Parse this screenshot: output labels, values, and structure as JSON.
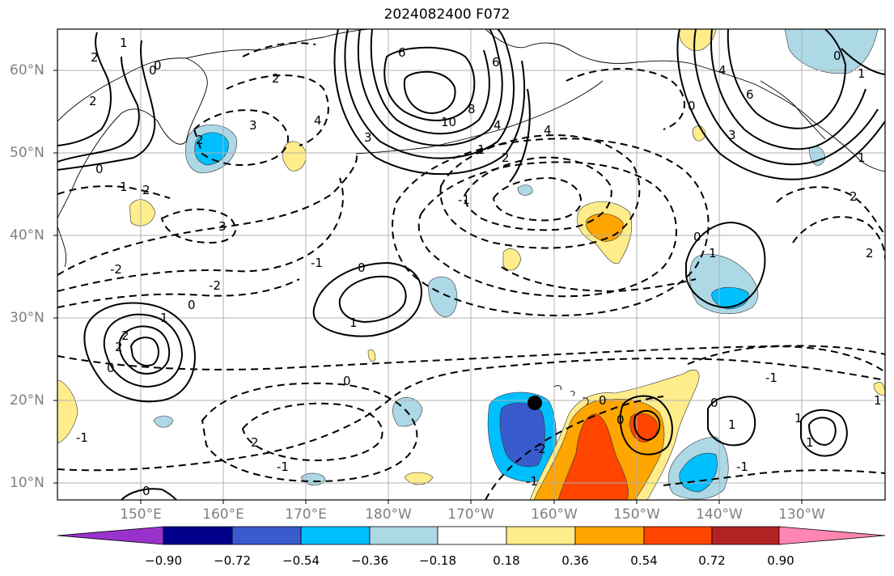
{
  "title": "2024082400 F072",
  "lat_labels": [
    "60°N",
    "50°N",
    "40°N",
    "30°N",
    "20°N",
    "10°N"
  ],
  "lon_labels": [
    "150°E",
    "160°E",
    "170°E",
    "180°W",
    "170°W",
    "160°W",
    "150°W",
    "140°W",
    "130°W"
  ],
  "colorbar": {
    "tick_labels": [
      "−0.90",
      "−0.72",
      "−0.54",
      "−0.36",
      "−0.18",
      "0.18",
      "0.36",
      "0.54",
      "0.72",
      "0.90"
    ],
    "colors": [
      "#9932cc",
      "#00008b",
      "#3a5bcd",
      "#00bfff",
      "#add8e6",
      "#ffffff",
      "#ffec8b",
      "#ffa500",
      "#ff4500",
      "#b22222",
      "#ff85b2"
    ]
  },
  "contour_labels": [
    "2",
    "1",
    "0",
    "2",
    "2",
    "3",
    "4",
    "2",
    "3",
    "6",
    "10",
    "8",
    "6",
    "4",
    "4",
    "2",
    "0",
    "1",
    "4",
    "6",
    "3",
    "2",
    "1",
    "2",
    "0",
    "3",
    "2",
    "2",
    "1",
    "-2",
    "-2",
    "0",
    "2",
    "0",
    "0",
    "-1",
    "-1",
    "1",
    "0",
    "0",
    "-1",
    "0",
    "0",
    "1",
    "1",
    "2",
    "1",
    "-1",
    "1",
    "0",
    "0",
    "1",
    "-1",
    "-2",
    "-1",
    "0",
    "1",
    "1",
    "0",
    "-1"
  ],
  "marker": "black-dot"
}
